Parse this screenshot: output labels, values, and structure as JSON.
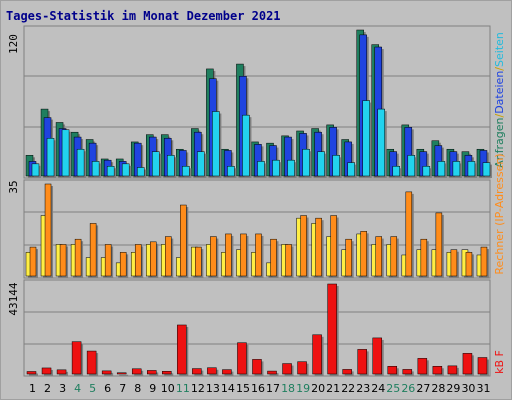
{
  "title": "Tages-Statistik im Monat Dezember 2021",
  "colors": {
    "anfragen": "#1f7f5f",
    "dateien": "#1f44e0",
    "seiten": "#22d3ee",
    "rechner": "#ff8c1a",
    "besuche": "#ffee44",
    "kbf": "#ee1111",
    "weekend_label": "#1f7f5f",
    "plot_bg": "#c0c0c0",
    "grid": "#808080"
  },
  "labels": {
    "top_right": [
      "Anfragen",
      "/",
      "Dateien",
      "/",
      "Seiten"
    ],
    "mid_right": "Rechner (IP-Adressen)",
    "bot_right": "kB F"
  },
  "chart_data": [
    {
      "type": "bar",
      "name": "top",
      "ymax_label": "120",
      "ylim": [
        0,
        120
      ],
      "categories": [
        "1",
        "2",
        "3",
        "4",
        "5",
        "6",
        "7",
        "8",
        "9",
        "10",
        "11",
        "12",
        "13",
        "14",
        "15",
        "16",
        "17",
        "18",
        "19",
        "20",
        "21",
        "22",
        "23",
        "24",
        "25",
        "26",
        "27",
        "28",
        "29",
        "30",
        "31"
      ],
      "weekend_days": [
        "4",
        "5",
        "11",
        "18",
        "19",
        "25",
        "26"
      ],
      "series": [
        {
          "key": "anfragen",
          "values": [
            17,
            55,
            44,
            36,
            30,
            14,
            14,
            28,
            34,
            34,
            22,
            39,
            88,
            22,
            92,
            28,
            27,
            33,
            37,
            39,
            42,
            30,
            120,
            108,
            22,
            42,
            22,
            29,
            22,
            20,
            22
          ]
        },
        {
          "key": "dateien",
          "values": [
            12,
            48,
            39,
            32,
            27,
            13,
            12,
            27,
            32,
            31,
            21,
            36,
            80,
            21,
            82,
            26,
            25,
            32,
            35,
            36,
            40,
            28,
            116,
            106,
            20,
            40,
            20,
            25,
            20,
            17,
            21
          ]
        },
        {
          "key": "seiten",
          "values": [
            10,
            31,
            38,
            22,
            12,
            8,
            10,
            7,
            20,
            17,
            8,
            20,
            53,
            8,
            50,
            12,
            13,
            13,
            22,
            20,
            17,
            11,
            62,
            55,
            8,
            17,
            8,
            12,
            12,
            12,
            11
          ]
        }
      ]
    },
    {
      "type": "bar",
      "name": "middle",
      "ymax_label": "35",
      "ylim": [
        0,
        35
      ],
      "categories": [
        "1",
        "2",
        "3",
        "4",
        "5",
        "6",
        "7",
        "8",
        "9",
        "10",
        "11",
        "12",
        "13",
        "14",
        "15",
        "16",
        "17",
        "18",
        "19",
        "20",
        "21",
        "22",
        "23",
        "24",
        "25",
        "26",
        "27",
        "28",
        "29",
        "30",
        "31"
      ],
      "series": [
        {
          "key": "besuche",
          "values": [
            9,
            23,
            12,
            12,
            7,
            7,
            5,
            9,
            12,
            12,
            7,
            11,
            12,
            9,
            10,
            9,
            5,
            12,
            22,
            20,
            15,
            10,
            16,
            12,
            12,
            8,
            10,
            10,
            9,
            10,
            8
          ]
        },
        {
          "key": "rechner",
          "values": [
            11,
            35,
            12,
            14,
            20,
            12,
            9,
            12,
            13,
            15,
            27,
            11,
            15,
            16,
            16,
            16,
            14,
            12,
            23,
            22,
            23,
            14,
            17,
            15,
            15,
            32,
            14,
            24,
            10,
            9,
            11
          ]
        }
      ]
    },
    {
      "type": "bar",
      "name": "bottom",
      "ymax_label": "43144",
      "ylim": [
        0,
        43144
      ],
      "categories": [
        "1",
        "2",
        "3",
        "4",
        "5",
        "6",
        "7",
        "8",
        "9",
        "10",
        "11",
        "12",
        "13",
        "14",
        "15",
        "16",
        "17",
        "18",
        "19",
        "20",
        "21",
        "22",
        "23",
        "24",
        "25",
        "26",
        "27",
        "28",
        "29",
        "30",
        "31"
      ],
      "series": [
        {
          "key": "kbf",
          "values": [
            1200,
            2900,
            2000,
            15500,
            11000,
            1500,
            600,
            2500,
            1700,
            1300,
            23500,
            2600,
            3000,
            2100,
            15000,
            7000,
            1400,
            5000,
            5900,
            18800,
            43144,
            2200,
            11800,
            17300,
            3700,
            2200,
            7500,
            3700,
            3900,
            9900,
            7900
          ]
        }
      ]
    }
  ]
}
